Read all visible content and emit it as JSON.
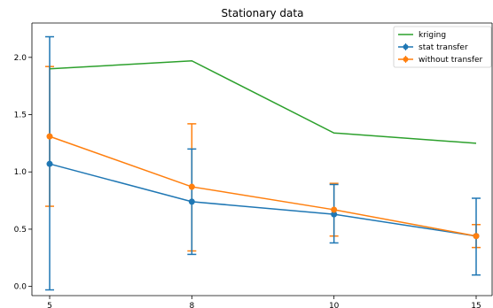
{
  "chart_data": {
    "type": "line",
    "title": "Stationary data",
    "xlabel": "",
    "ylabel": "",
    "x": [
      5,
      8,
      10,
      15
    ],
    "x_ticks": [
      5,
      8,
      10,
      15
    ],
    "y_ticks": [
      0.0,
      0.5,
      1.0,
      1.5,
      2.0
    ],
    "y_tick_labels": [
      "0.0",
      "0.5",
      "1.0",
      "1.5",
      "2.0"
    ],
    "ylim": [
      -0.08,
      2.3
    ],
    "grid": false,
    "legend_position": "top-right",
    "series": [
      {
        "name": "kriging",
        "color": "#2ca02c",
        "values": [
          1.9,
          1.97,
          1.34,
          1.25
        ],
        "markers": false,
        "errors": null
      },
      {
        "name": "stat transfer",
        "color": "#1f77b4",
        "values": [
          1.07,
          0.74,
          0.63,
          0.44
        ],
        "markers": true,
        "errors": [
          [
            -0.03,
            2.18
          ],
          [
            0.28,
            1.2
          ],
          [
            0.38,
            0.89
          ],
          [
            0.1,
            0.77
          ]
        ]
      },
      {
        "name": "without transfer",
        "color": "#ff7f0e",
        "values": [
          1.31,
          0.87,
          0.67,
          0.44
        ],
        "markers": true,
        "errors": [
          [
            0.7,
            1.92
          ],
          [
            0.31,
            1.42
          ],
          [
            0.44,
            0.9
          ],
          [
            0.34,
            0.54
          ]
        ]
      }
    ]
  }
}
